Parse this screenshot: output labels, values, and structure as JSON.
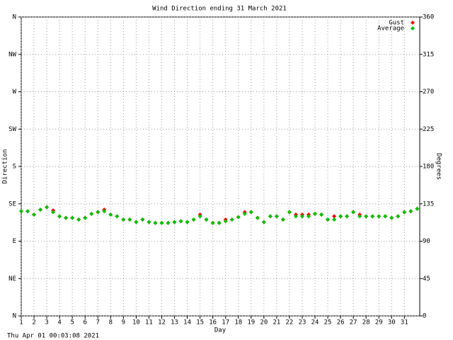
{
  "chart_data": {
    "type": "scatter",
    "title": "Wind Direction ending 31 March 2021",
    "xlabel": "Day",
    "ylabel": "Direction",
    "y2label": "Degrees",
    "footer": "Thu Apr 01 00:03:08 2021",
    "x": [
      1,
      1.5,
      2,
      2.5,
      3,
      3.5,
      4,
      4.5,
      5,
      5.5,
      6,
      6.5,
      7,
      7.5,
      8,
      8.5,
      9,
      9.5,
      10,
      10.5,
      11,
      11.5,
      12,
      12.5,
      13,
      13.5,
      14,
      14.5,
      15,
      15.5,
      16,
      16.5,
      17,
      17.5,
      18,
      18.5,
      19,
      19.5,
      20,
      20.5,
      21,
      21.5,
      22,
      22.5,
      23,
      23.5,
      24,
      24.5,
      25,
      25.5,
      26,
      26.5,
      27,
      27.5,
      28,
      28.5,
      29,
      29.5,
      30,
      30.5,
      31,
      31.5,
      32
    ],
    "series": [
      {
        "name": "Gust",
        "color": "#ff0000",
        "values": [
          126,
          126,
          122,
          128,
          131,
          127,
          120,
          118,
          118,
          116,
          118,
          123,
          125,
          128,
          122,
          120,
          116,
          116,
          113,
          116,
          113,
          112,
          112,
          112,
          113,
          114,
          113,
          116,
          122,
          116,
          112,
          112,
          116,
          116,
          119,
          125,
          125,
          118,
          113,
          120,
          120,
          116,
          125,
          122,
          122,
          122,
          123,
          122,
          116,
          120,
          120,
          120,
          125,
          122,
          120,
          120,
          120,
          120,
          118,
          120,
          125,
          126,
          129
        ]
      },
      {
        "name": "Average",
        "color": "#00c000",
        "values": [
          126,
          126,
          122,
          128,
          131,
          125,
          120,
          118,
          118,
          116,
          118,
          123,
          125,
          126,
          122,
          120,
          116,
          116,
          113,
          116,
          113,
          112,
          112,
          112,
          113,
          114,
          113,
          116,
          120,
          116,
          112,
          112,
          114,
          116,
          119,
          123,
          125,
          118,
          113,
          120,
          120,
          116,
          125,
          120,
          120,
          120,
          123,
          122,
          116,
          116,
          120,
          120,
          125,
          120,
          120,
          120,
          120,
          120,
          118,
          120,
          125,
          126,
          129
        ]
      }
    ],
    "xlim": [
      1,
      32.2
    ],
    "xticks": [
      1,
      2,
      3,
      4,
      5,
      6,
      7,
      8,
      9,
      10,
      11,
      12,
      13,
      14,
      15,
      16,
      17,
      18,
      19,
      20,
      21,
      22,
      23,
      24,
      25,
      26,
      27,
      28,
      29,
      30,
      31
    ],
    "ylim": [
      0,
      360
    ],
    "yticks": [
      {
        "value": 0,
        "label": "N"
      },
      {
        "value": 45,
        "label": "NE"
      },
      {
        "value": 90,
        "label": "E"
      },
      {
        "value": 135,
        "label": "SE"
      },
      {
        "value": 180,
        "label": "S"
      },
      {
        "value": 225,
        "label": "SW"
      },
      {
        "value": 270,
        "label": "W"
      },
      {
        "value": 315,
        "label": "NW"
      },
      {
        "value": 360,
        "label": "N"
      }
    ],
    "y2lim": [
      0,
      360
    ],
    "y2ticks": [
      0,
      45,
      90,
      135,
      180,
      225,
      270,
      315,
      360
    ],
    "grid": true,
    "legend": "top-right"
  }
}
